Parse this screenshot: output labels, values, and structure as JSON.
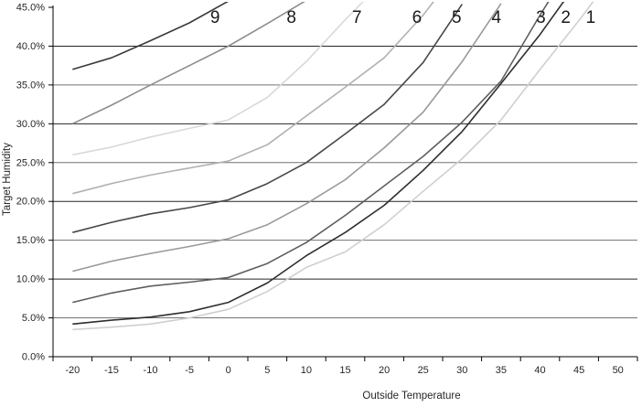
{
  "chart_data": {
    "type": "line",
    "title": "",
    "xlabel": "Outside Temperature",
    "ylabel": "Target Humidity",
    "x": [
      -20,
      -15,
      -10,
      -5,
      0,
      5,
      10,
      15,
      20,
      25,
      30,
      35,
      40,
      45,
      50
    ],
    "x_tick_labels": [
      "-20",
      "-15",
      "-10",
      "-5",
      "0",
      "5",
      "10",
      "15",
      "20",
      "25",
      "30",
      "35",
      "40",
      "45",
      "50"
    ],
    "y_tick_labels": [
      "0.0%",
      "5.0%",
      "10.0%",
      "15.0%",
      "20.0%",
      "25.0%",
      "30.0%",
      "35.0%",
      "40.0%",
      "45.0%"
    ],
    "y_ticks": [
      0,
      5,
      10,
      15,
      20,
      25,
      30,
      35,
      40,
      45
    ],
    "ylim": [
      0,
      45
    ],
    "grid": "horizontal",
    "legend": "curve-number-labels-along-top",
    "series": [
      {
        "name": "9",
        "color": "#3a3a3a",
        "label_temp": -1.7,
        "values": [
          37,
          38.5,
          40.7,
          43,
          45.8,
          null,
          null,
          null,
          null,
          null,
          null,
          null,
          null,
          null,
          null
        ]
      },
      {
        "name": "8",
        "color": "#8c8c8c",
        "label_temp": 8.1,
        "values": [
          30,
          32.4,
          35,
          37.5,
          40,
          42.9,
          45.9,
          null,
          null,
          null,
          null,
          null,
          null,
          null,
          null
        ]
      },
      {
        "name": "7",
        "color": "#d9d9d9",
        "label_temp": 16.5,
        "values": [
          26,
          27,
          28.3,
          29.4,
          30.5,
          33.4,
          38,
          43.4,
          48.5,
          null,
          null,
          null,
          null,
          null,
          null
        ]
      },
      {
        "name": "6",
        "color": "#b2b2b2",
        "label_temp": 24.2,
        "values": [
          21,
          22.3,
          23.4,
          24.3,
          25.2,
          27.3,
          31,
          34.7,
          38.5,
          44,
          50.5,
          null,
          null,
          null,
          null
        ]
      },
      {
        "name": "5",
        "color": "#474747",
        "label_temp": 29.3,
        "values": [
          16,
          17.3,
          18.4,
          19.2,
          20.2,
          22.3,
          25,
          28.7,
          32.5,
          37.9,
          45.4,
          null,
          null,
          null,
          null
        ]
      },
      {
        "name": "4",
        "color": "#999999",
        "label_temp": 34.4,
        "values": [
          11,
          12.3,
          13.3,
          14.2,
          15.2,
          17,
          19.7,
          22.8,
          26.9,
          31.5,
          38,
          45.5,
          null,
          null,
          null
        ]
      },
      {
        "name": "3",
        "color": "#5e5e5e",
        "label_temp": 40.1,
        "values": [
          7,
          8.2,
          9.1,
          9.6,
          10.2,
          12,
          14.7,
          18.2,
          22,
          25.8,
          30.2,
          35.5,
          44,
          52,
          null
        ]
      },
      {
        "name": "2",
        "color": "#2e2e2e",
        "label_temp": 43.3,
        "values": [
          4.2,
          4.7,
          5.1,
          5.8,
          7,
          9.5,
          13,
          16,
          19.5,
          24,
          29,
          35.2,
          41.5,
          48.5,
          null
        ]
      },
      {
        "name": "1",
        "color": "#cfcfcf",
        "label_temp": 46.5,
        "values": [
          3.5,
          3.8,
          4.2,
          5,
          6.1,
          8.4,
          11.5,
          13.5,
          17,
          21.3,
          25.5,
          30.5,
          37,
          43.3,
          50
        ]
      }
    ]
  },
  "colors": {
    "background": "#ffffff",
    "axis": "#000000",
    "grid_major": "#262626",
    "grid_minor": "#737373",
    "tick_text": "#262626",
    "curve_label_text": "#1a1a1a"
  }
}
